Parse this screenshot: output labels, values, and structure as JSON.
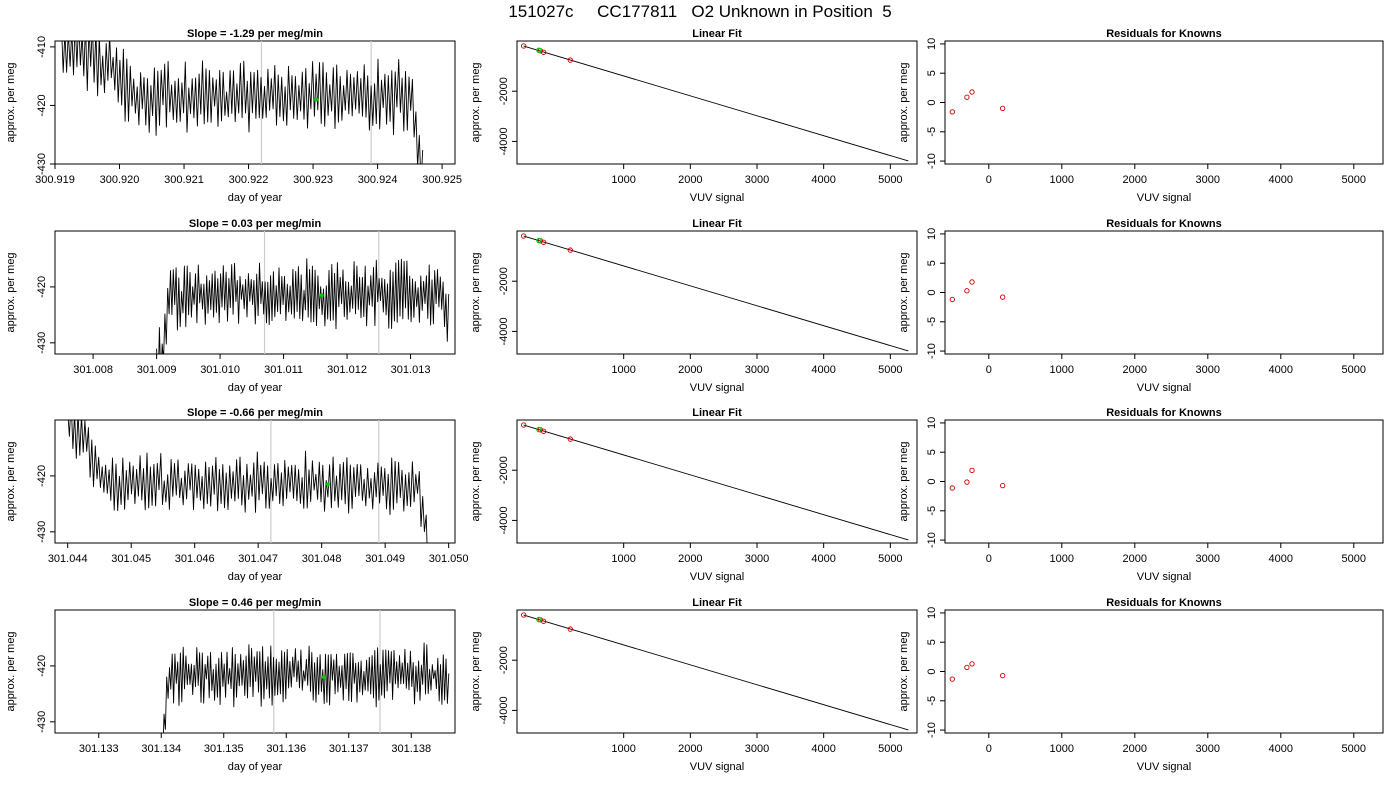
{
  "page": {
    "title": "151027c     CC177811   O2 Unknown in Position  5"
  },
  "colors": {
    "line": "#000000",
    "unknown_point": "#00cc00",
    "known_point": "#cc0000",
    "ref_line": "#cccccc"
  },
  "chart_data": [
    {
      "type": "line",
      "row": 0,
      "kind": "timeseries",
      "title": "Slope =  -1.29  per meg/min",
      "xlabel": "day of year",
      "ylabel": "approx. per meg",
      "xlim": [
        300.919,
        300.9252
      ],
      "ylim": [
        -430,
        -409
      ],
      "xticks": [
        "300.919",
        "300.920",
        "300.921",
        "300.922",
        "300.923",
        "300.924",
        "300.925"
      ],
      "yticks": [
        "-410",
        "-420",
        "-430"
      ],
      "vlines": [
        300.9222,
        300.9239
      ],
      "unknown_point": [
        300.92305,
        -419
      ],
      "x_start": 300.9191,
      "x_end": 300.9247,
      "noise_x0": 300.9202,
      "series_shape": {
        "early_level": -409,
        "level": -418.5,
        "amp": 5,
        "tail": -432
      }
    },
    {
      "type": "line",
      "row": 0,
      "kind": "fit",
      "title": "Linear Fit",
      "xlabel": "VUV signal",
      "ylabel": "approx. per meg",
      "xlim": [
        -600,
        5400
      ],
      "ylim": [
        -4900,
        0
      ],
      "xticks": [
        "1000",
        "2000",
        "3000",
        "4000",
        "5000"
      ],
      "yticks": [
        "-2000",
        "-4000"
      ],
      "fit_line": [
        [
          -500,
          -200
        ],
        [
          5270,
          -4780
        ]
      ],
      "knowns": [
        [
          -500,
          -200
        ],
        [
          -250,
          -390
        ],
        [
          -200,
          -450
        ],
        [
          200,
          -760
        ]
      ],
      "unknown": [
        [
          -270,
          -370
        ]
      ]
    },
    {
      "type": "scatter",
      "row": 0,
      "kind": "residuals",
      "title": "Residuals for Knowns",
      "xlabel": "VUV signal",
      "ylabel": "approx. per meg",
      "xlim": [
        -600,
        5400
      ],
      "ylim": [
        -10.5,
        10.5
      ],
      "xticks": [
        "0",
        "1000",
        "2000",
        "3000",
        "4000",
        "5000"
      ],
      "yticks": [
        "10",
        "5",
        "0",
        "-5",
        "-10"
      ],
      "points": [
        [
          -500,
          -1.6
        ],
        [
          -300,
          0.9
        ],
        [
          -230,
          1.8
        ],
        [
          190,
          -1.0
        ]
      ]
    },
    {
      "type": "line",
      "row": 1,
      "kind": "timeseries",
      "title": "Slope =  0.03  per meg/min",
      "xlabel": "day of year",
      "ylabel": "approx. per meg",
      "xlim": [
        301.0074,
        301.0137
      ],
      "ylim": [
        -432,
        -410
      ],
      "xticks": [
        "301.008",
        "301.009",
        "301.010",
        "301.011",
        "301.012",
        "301.013"
      ],
      "yticks": [
        "-420",
        "-430"
      ],
      "vlines": [
        301.0107,
        301.0125
      ],
      "unknown_point": [
        301.0116,
        -421.5
      ],
      "x_start": 301.009,
      "x_end": 301.0136,
      "noise_x0": 301.0092,
      "series_shape": {
        "early_level": -435,
        "level": -421.5,
        "amp": 5,
        "tail": -426
      }
    },
    {
      "type": "line",
      "row": 1,
      "kind": "fit",
      "title": "Linear Fit",
      "xlabel": "VUV signal",
      "ylabel": "approx. per meg",
      "xlim": [
        -600,
        5400
      ],
      "ylim": [
        -4900,
        0
      ],
      "xticks": [
        "1000",
        "2000",
        "3000",
        "4000",
        "5000"
      ],
      "yticks": [
        "-2000",
        "-4000"
      ],
      "fit_line": [
        [
          -500,
          -200
        ],
        [
          5270,
          -4780
        ]
      ],
      "knowns": [
        [
          -500,
          -200
        ],
        [
          -250,
          -390
        ],
        [
          -200,
          -450
        ],
        [
          200,
          -760
        ]
      ],
      "unknown": [
        [
          -270,
          -380
        ]
      ]
    },
    {
      "type": "scatter",
      "row": 1,
      "kind": "residuals",
      "title": "Residuals for Knowns",
      "xlabel": "VUV signal",
      "ylabel": "approx. per meg",
      "xlim": [
        -600,
        5400
      ],
      "ylim": [
        -10.5,
        10.5
      ],
      "xticks": [
        "0",
        "1000",
        "2000",
        "3000",
        "4000",
        "5000"
      ],
      "yticks": [
        "10",
        "5",
        "0",
        "-5",
        "-10"
      ],
      "points": [
        [
          -500,
          -1.2
        ],
        [
          -300,
          0.3
        ],
        [
          -230,
          1.8
        ],
        [
          190,
          -0.8
        ]
      ]
    },
    {
      "type": "line",
      "row": 2,
      "kind": "timeseries",
      "title": "Slope =  -0.66  per meg/min",
      "xlabel": "day of year",
      "ylabel": "approx. per meg",
      "xlim": [
        301.0438,
        301.0501
      ],
      "ylim": [
        -432,
        -410
      ],
      "xticks": [
        "301.044",
        "301.045",
        "301.046",
        "301.047",
        "301.048",
        "301.049",
        "301.050"
      ],
      "yticks": [
        "-420",
        "-430"
      ],
      "vlines": [
        301.0472,
        301.0489
      ],
      "unknown_point": [
        301.0481,
        -421.5
      ],
      "x_start": 301.044,
      "x_end": 301.0497,
      "noise_x0": 301.0446,
      "series_shape": {
        "early_level": -411,
        "level": -421.5,
        "amp": 4.5,
        "tail": -435
      }
    },
    {
      "type": "line",
      "row": 2,
      "kind": "fit",
      "title": "Linear Fit",
      "xlabel": "VUV signal",
      "ylabel": "approx. per meg",
      "xlim": [
        -600,
        5400
      ],
      "ylim": [
        -4900,
        0
      ],
      "xticks": [
        "1000",
        "2000",
        "3000",
        "4000",
        "5000"
      ],
      "yticks": [
        "-2000",
        "-4000"
      ],
      "fit_line": [
        [
          -500,
          -200
        ],
        [
          5270,
          -4780
        ]
      ],
      "knowns": [
        [
          -500,
          -200
        ],
        [
          -250,
          -390
        ],
        [
          -200,
          -450
        ],
        [
          200,
          -760
        ]
      ],
      "unknown": [
        [
          -270,
          -380
        ]
      ]
    },
    {
      "type": "scatter",
      "row": 2,
      "kind": "residuals",
      "title": "Residuals for Knowns",
      "xlabel": "VUV signal",
      "ylabel": "approx. per meg",
      "xlim": [
        -600,
        5400
      ],
      "ylim": [
        -10.5,
        10.5
      ],
      "xticks": [
        "0",
        "1000",
        "2000",
        "3000",
        "4000",
        "5000"
      ],
      "yticks": [
        "10",
        "5",
        "0",
        "-5",
        "-10"
      ],
      "points": [
        [
          -500,
          -1.1
        ],
        [
          -300,
          -0.1
        ],
        [
          -230,
          1.9
        ],
        [
          190,
          -0.7
        ]
      ]
    },
    {
      "type": "line",
      "row": 3,
      "kind": "timeseries",
      "title": "Slope =  0.46  per meg/min",
      "xlabel": "day of year",
      "ylabel": "approx. per meg",
      "xlim": [
        301.1323,
        301.1387
      ],
      "ylim": [
        -432,
        -410
      ],
      "xticks": [
        "301.133",
        "301.134",
        "301.135",
        "301.136",
        "301.137",
        "301.138"
      ],
      "yticks": [
        "-420",
        "-430"
      ],
      "vlines": [
        301.1358,
        301.1375
      ],
      "unknown_point": [
        301.1366,
        -422
      ],
      "x_start": 301.134,
      "x_end": 301.1386,
      "noise_x0": 301.1341,
      "series_shape": {
        "early_level": -436,
        "level": -421.5,
        "amp": 4.5,
        "tail": -424
      }
    },
    {
      "type": "line",
      "row": 3,
      "kind": "fit",
      "title": "Linear Fit",
      "xlabel": "VUV signal",
      "ylabel": "approx. per meg",
      "xlim": [
        -600,
        5400
      ],
      "ylim": [
        -4900,
        0
      ],
      "xticks": [
        "1000",
        "2000",
        "3000",
        "4000",
        "5000"
      ],
      "yticks": [
        "-2000",
        "-4000"
      ],
      "fit_line": [
        [
          -500,
          -200
        ],
        [
          5270,
          -4780
        ]
      ],
      "knowns": [
        [
          -500,
          -200
        ],
        [
          -250,
          -390
        ],
        [
          -200,
          -450
        ],
        [
          200,
          -760
        ]
      ],
      "unknown": [
        [
          -270,
          -380
        ]
      ]
    },
    {
      "type": "scatter",
      "row": 3,
      "kind": "residuals",
      "title": "Residuals for Knowns",
      "xlabel": "VUV signal",
      "ylabel": "approx. per meg",
      "xlim": [
        -600,
        5400
      ],
      "ylim": [
        -10.5,
        10.5
      ],
      "xticks": [
        "0",
        "1000",
        "2000",
        "3000",
        "4000",
        "5000"
      ],
      "yticks": [
        "10",
        "5",
        "0",
        "-5",
        "-10"
      ],
      "points": [
        [
          -500,
          -1.3
        ],
        [
          -300,
          0.7
        ],
        [
          -230,
          1.3
        ],
        [
          190,
          -0.7
        ]
      ]
    }
  ]
}
